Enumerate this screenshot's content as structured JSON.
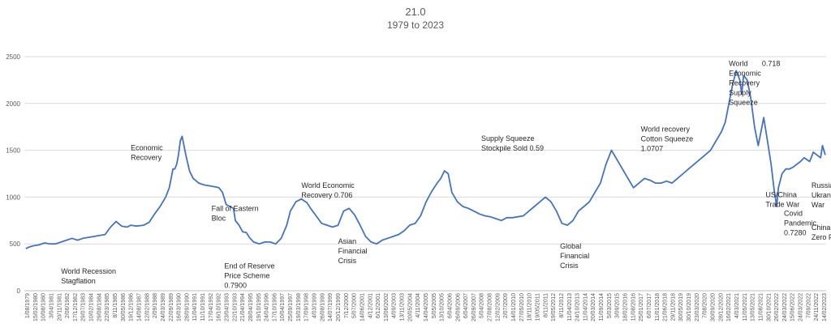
{
  "colors": {
    "series": "#4472c4",
    "grid": "#d9d9d9",
    "axis": "#bfbfbf",
    "text": "#595959",
    "annotation": "#262626"
  },
  "chart_data": {
    "type": "line",
    "title": "21.0",
    "subtitle": "1979 to 2023",
    "xlabel": "",
    "ylabel": "",
    "ylim": [
      0,
      2500
    ],
    "yticks": [
      0,
      500,
      1000,
      1500,
      2000,
      2500
    ],
    "grid": true,
    "legend": "none",
    "xtick_labels": [
      "1/08/1979",
      "15/02/1980",
      "10/08/1980",
      "3/04/1981",
      "20/11/1981",
      "2/06/1982",
      "17/12/1982",
      "29/07/1983",
      "10/02/1984",
      "29/08/1984",
      "22/03/1985",
      "8/11/1985",
      "30/05/1986",
      "19/12/1986",
      "14/08/1987",
      "12/02/1988",
      "2/09/1988",
      "24/03/1989",
      "22/09/1989",
      "16/03/1990",
      "28/09/1990",
      "11/04/1991",
      "11/10/1991",
      "17/04/1992",
      "16/10/1992",
      "23/04/1993",
      "22/10/1993",
      "21/04/1994",
      "28/04/1995",
      "19/10/1995",
      "24/04/1996",
      "17/10/1996",
      "10/04/1997",
      "25/09/1997",
      "19/03/1998",
      "17/09/1998",
      "4/03/1999",
      "26/08/1999",
      "14/07/1999",
      "20/12/1999",
      "7/12/2000",
      "5/07/2000",
      "14/06/2001",
      "4/12/2001",
      "6/12/2001",
      "13/06/2002",
      "4/09/2003",
      "13/11/2003",
      "20/05/2004",
      "4/11/2004",
      "14/04/2005",
      "5/05/2005",
      "13/10/2005",
      "6/04/2006",
      "26/09/2006",
      "6/04/2007",
      "26/09/2007",
      "5/04/2008",
      "27/08/2008",
      "12/02/2009",
      "2/07/2009",
      "14/01/2010",
      "27/05/2010",
      "18/11/2010",
      "19/05/2011",
      "8/11/2011",
      "19/05/2012",
      "8/11/2012",
      "11/04/2013",
      "24/10/2013",
      "11/04/2014",
      "20/03/2014",
      "11/09/2014",
      "5/03/2015",
      "3/09/2015",
      "18/02/2016",
      "11/08/2016",
      "25/01/2017",
      "6/07/2017",
      "11/01/2018",
      "21/06/2018",
      "29/11/2018",
      "30/05/2019",
      "30/10/2019",
      "23/03/2020",
      "7/08/2020",
      "30/09/2020",
      "28/12/2020",
      "16/02/2021",
      "4/03/2021",
      "11/05/2021",
      "13/05/2021",
      "11/08/2021",
      "30/10/2021",
      "26/02/2022",
      "24/03/2022",
      "15/06/2022",
      "24/03/2022",
      "7/09/2022",
      "24/11/2022",
      "14/02/2023"
    ],
    "series": [
      {
        "x": [
          1979.58,
          1979.8,
          1980.0,
          1980.3,
          1980.6,
          1980.9,
          1981.2,
          1981.5,
          1981.8,
          1982.1,
          1982.4,
          1982.7,
          1983.0,
          1983.3,
          1983.6,
          1983.9,
          1984.2,
          1984.5,
          1984.8,
          1985.1,
          1985.3,
          1985.6,
          1986.0,
          1986.3,
          1986.6,
          1986.9,
          1987.2,
          1987.4,
          1987.5,
          1987.6,
          1987.7,
          1987.8,
          1987.9,
          1988.0,
          1988.1,
          1988.2,
          1988.3,
          1988.5,
          1988.7,
          1989.0,
          1989.3,
          1989.6,
          1989.9,
          1990.1,
          1990.3,
          1990.5,
          1990.7,
          1990.9,
          1991.0,
          1991.2,
          1991.4,
          1991.6,
          1991.8,
          1992.0,
          1992.3,
          1992.6,
          1992.9,
          1993.2,
          1993.5,
          1993.8,
          1994.0,
          1994.3,
          1994.6,
          1994.9,
          1995.1,
          1995.4,
          1995.7,
          1996.0,
          1996.3,
          1996.6,
          1996.9,
          1997.2,
          1997.5,
          1997.8,
          1998.1,
          1998.4,
          1998.7,
          1999.0,
          1999.3,
          1999.6,
          1999.9,
          2000.2,
          2000.5,
          2000.8,
          2001.1,
          2001.4,
          2001.7,
          2002.0,
          2002.2,
          2002.4,
          2002.6,
          2002.8,
          2003.1,
          2003.4,
          2003.7,
          2004.0,
          2004.3,
          2004.6,
          2004.9,
          2005.2,
          2005.5,
          2005.8,
          2006.1,
          2006.4,
          2006.7,
          2007.0,
          2007.3,
          2007.6,
          2007.9,
          2008.2,
          2008.5,
          2008.8,
          2009.1,
          2009.4,
          2009.7,
          2010.0,
          2010.3,
          2010.6,
          2010.9,
          2011.2,
          2011.5,
          2011.8,
          2012.1,
          2012.4,
          2012.7,
          2013.0,
          2013.3,
          2013.6,
          2013.9,
          2014.2,
          2014.5,
          2014.8,
          2015.1,
          2015.4,
          2015.7,
          2016.0,
          2016.3,
          2016.6,
          2016.9,
          2017.2,
          2017.5,
          2017.7,
          2017.9,
          2018.1,
          2018.3,
          2018.5,
          2018.6,
          2018.7,
          2018.9,
          2019.1,
          2019.3,
          2019.5,
          2019.7,
          2019.8,
          2020.0,
          2020.2,
          2020.35,
          2020.5,
          2020.6,
          2020.8,
          2021.0,
          2021.2,
          2021.4,
          2021.6,
          2021.8,
          2022.0,
          2022.3,
          2022.5,
          2022.7,
          2022.9,
          2023.0,
          2023.15
        ],
        "values": [
          450,
          470,
          480,
          490,
          510,
          500,
          500,
          520,
          540,
          560,
          540,
          560,
          570,
          580,
          590,
          600,
          680,
          740,
          690,
          680,
          700,
          690,
          700,
          730,
          820,
          900,
          1000,
          1100,
          1200,
          1300,
          1300,
          1350,
          1450,
          1600,
          1650,
          1550,
          1450,
          1280,
          1200,
          1150,
          1130,
          1120,
          1110,
          1100,
          1050,
          920,
          900,
          880,
          750,
          700,
          630,
          620,
          560,
          520,
          500,
          520,
          520,
          500,
          560,
          700,
          850,
          950,
          980,
          940,
          880,
          800,
          720,
          700,
          680,
          700,
          850,
          880,
          810,
          700,
          580,
          520,
          500,
          540,
          560,
          580,
          600,
          640,
          700,
          720,
          800,
          950,
          1060,
          1150,
          1200,
          1280,
          1250,
          1050,
          950,
          900,
          880,
          850,
          820,
          800,
          790,
          770,
          750,
          780,
          780,
          790,
          800,
          850,
          900,
          950,
          1000,
          950,
          850,
          720,
          700,
          750,
          850,
          900,
          950,
          1050,
          1150,
          1350,
          1500,
          1400,
          1300,
          1200,
          1100,
          1150,
          1200,
          1180,
          1150,
          1150,
          1170,
          1150,
          1200,
          1250,
          1300,
          1350,
          1400,
          1450,
          1500,
          1600,
          1700,
          1800,
          2000,
          2200,
          2350,
          2250,
          2100,
          2300,
          2250,
          2050,
          1750,
          1550,
          1750,
          1850,
          1600,
          1350,
          1100,
          900,
          1100,
          1250,
          1300,
          1300,
          1320,
          1350,
          1380,
          1420,
          1380,
          1480,
          1450,
          1420,
          1550,
          1450
        ]
      }
    ],
    "annotations": [
      {
        "lines": [
          "World Recession",
          "Stagflation"
        ],
        "x": 1981.5,
        "y": 180
      },
      {
        "lines": [
          "Economic",
          "Recovery"
        ],
        "x": 1985.3,
        "y": 1500
      },
      {
        "lines": [
          "Fall of Eastern",
          "Bloc"
        ],
        "x": 1989.7,
        "y": 850
      },
      {
        "lines": [
          "End  of Reserve",
          "Price Scheme",
          "0.7900"
        ],
        "x": 1990.4,
        "y": 240
      },
      {
        "lines": [
          "World Economic",
          "Recovery  0.706"
        ],
        "x": 1994.6,
        "y": 1100
      },
      {
        "lines": [
          "Asian",
          "Financial",
          "Crisis"
        ],
        "x": 1996.6,
        "y": 500
      },
      {
        "lines": [
          "Supply Squeeze",
          "Stockpile Sold  0.59"
        ],
        "x": 2004.4,
        "y": 1600
      },
      {
        "lines": [
          "Global",
          "Financial",
          "Crisis"
        ],
        "x": 2008.7,
        "y": 450
      },
      {
        "lines": [
          "World recovery",
          "Cotton Squeeze",
          "1.0707"
        ],
        "x": 2013.1,
        "y": 1700
      },
      {
        "lines": [
          "World",
          "Economic",
          "Recovery",
          "Supply",
          "Squeeze"
        ],
        "x": 2017.9,
        "y": 2400
      },
      {
        "lines": [
          "0.718"
        ],
        "x": 2019.7,
        "y": 2400
      },
      {
        "lines": [
          "US/China",
          "Trade   War"
        ],
        "x": 2019.9,
        "y": 1000
      },
      {
        "lines": [
          "Covid",
          "Pandemic",
          "0.7280"
        ],
        "x": 2020.9,
        "y": 800
      },
      {
        "lines": [
          "Russia",
          "Ukrane",
          "War"
        ],
        "x": 2022.4,
        "y": 1100
      },
      {
        "lines": [
          "China Covid",
          "Zero Policy"
        ],
        "x": 2022.4,
        "y": 650
      }
    ]
  }
}
